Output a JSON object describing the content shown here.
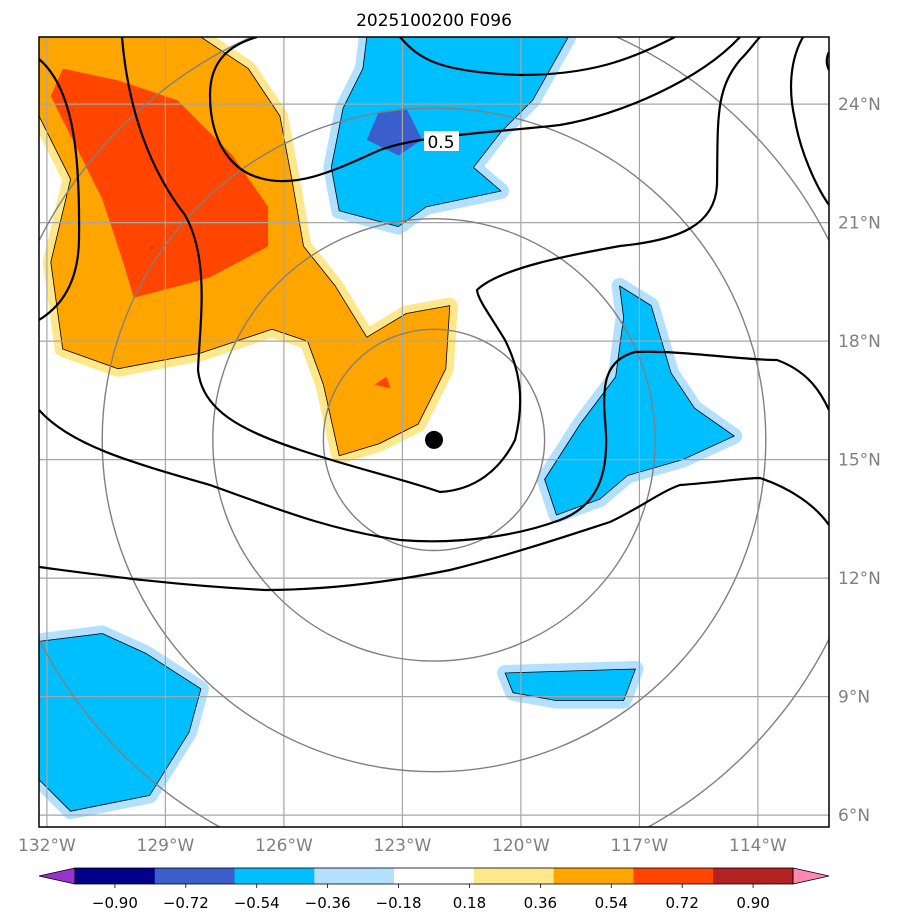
{
  "chart_data": {
    "type": "heatmap",
    "title": "2025100200 F096",
    "x_ticks": [
      "132°W",
      "129°W",
      "126°W",
      "123°W",
      "120°W",
      "117°W",
      "114°W"
    ],
    "x_tick_values": [
      -132,
      -129,
      -126,
      -123,
      -120,
      -117,
      -114
    ],
    "y_ticks": [
      "6°N",
      "9°N",
      "12°N",
      "15°N",
      "18°N",
      "21°N",
      "24°N"
    ],
    "y_tick_values": [
      6,
      9,
      12,
      15,
      18,
      21,
      24
    ],
    "xlim": [
      -132.2,
      -112.2
    ],
    "ylim": [
      5.7,
      25.7
    ],
    "grid": true,
    "storm_center": {
      "lon": -122.2,
      "lat": 15.5
    },
    "range_rings_deg": [
      2.8,
      5.6,
      8.4,
      11.2
    ],
    "contour_label": "0.5",
    "colorbar": {
      "orientation": "horizontal",
      "extend": "both",
      "tick_labels": [
        "−0.90",
        "−0.72",
        "−0.54",
        "−0.36",
        "−0.18",
        "0.18",
        "0.36",
        "0.54",
        "0.72",
        "0.90"
      ],
      "levels": [
        -0.9,
        -0.72,
        -0.54,
        -0.36,
        -0.18,
        0.18,
        0.36,
        0.54,
        0.72,
        0.9
      ],
      "colors": [
        "#9932cc",
        "#00008b",
        "#3a5fcd",
        "#00bfff",
        "#b3e0ff",
        "#ffffff",
        "#ffe78c",
        "#ffa500",
        "#ff4500",
        "#b22222",
        "#ff88b0"
      ]
    },
    "shaded_regions": [
      {
        "level": 0.54,
        "color": "#ffa500",
        "polygon": [
          [
            -132.2,
            25.7
          ],
          [
            -128.1,
            25.7
          ],
          [
            -126.9,
            24.9
          ],
          [
            -126.1,
            23.7
          ],
          [
            -125.8,
            22.1
          ],
          [
            -125.5,
            20.4
          ],
          [
            -124.7,
            19.4
          ],
          [
            -123.9,
            18.1
          ],
          [
            -122.9,
            18.7
          ],
          [
            -121.8,
            18.9
          ],
          [
            -121.9,
            17.3
          ],
          [
            -122.6,
            15.9
          ],
          [
            -123.6,
            15.4
          ],
          [
            -124.6,
            15.1
          ],
          [
            -125.0,
            16.9
          ],
          [
            -125.4,
            18.0
          ],
          [
            -126.3,
            18.3
          ],
          [
            -128.1,
            17.7
          ],
          [
            -130.2,
            17.3
          ],
          [
            -131.6,
            17.8
          ],
          [
            -131.9,
            20.0
          ],
          [
            -131.4,
            22.1
          ],
          [
            -132.2,
            23.7
          ]
        ]
      },
      {
        "level": 0.72,
        "color": "#ff4500",
        "polygon": [
          [
            -131.6,
            24.9
          ],
          [
            -130.2,
            24.6
          ],
          [
            -128.7,
            24.1
          ],
          [
            -127.3,
            22.7
          ],
          [
            -126.4,
            21.4
          ],
          [
            -126.4,
            20.4
          ],
          [
            -127.9,
            19.6
          ],
          [
            -129.8,
            19.1
          ],
          [
            -130.1,
            20.1
          ],
          [
            -130.6,
            21.6
          ],
          [
            -131.4,
            23.2
          ],
          [
            -131.9,
            24.2
          ]
        ]
      },
      {
        "level": 0.72,
        "color": "#ff4500",
        "polygon": [
          [
            -123.7,
            16.9
          ],
          [
            -123.4,
            17.1
          ],
          [
            -123.3,
            16.8
          ]
        ]
      },
      {
        "level": -0.36,
        "color": "#00bfff",
        "polygon": [
          [
            -123.9,
            25.7
          ],
          [
            -118.8,
            25.7
          ],
          [
            -119.7,
            24.1
          ],
          [
            -120.5,
            23.3
          ],
          [
            -121.2,
            22.4
          ],
          [
            -120.5,
            21.8
          ],
          [
            -122.4,
            21.4
          ],
          [
            -123.1,
            20.9
          ],
          [
            -124.6,
            21.3
          ],
          [
            -124.8,
            22.4
          ],
          [
            -124.5,
            23.9
          ],
          [
            -124.0,
            24.9
          ]
        ]
      },
      {
        "level": -0.54,
        "color": "#3a5fcd",
        "polygon": [
          [
            -123.6,
            23.8
          ],
          [
            -122.9,
            23.9
          ],
          [
            -122.5,
            23.1
          ],
          [
            -123.1,
            22.7
          ],
          [
            -123.9,
            23.1
          ]
        ]
      },
      {
        "level": -0.36,
        "color": "#00bfff",
        "polygon": [
          [
            -117.5,
            19.4
          ],
          [
            -116.7,
            18.9
          ],
          [
            -116.2,
            17.2
          ],
          [
            -115.6,
            16.3
          ],
          [
            -114.6,
            15.6
          ],
          [
            -115.9,
            15.0
          ],
          [
            -117.3,
            14.6
          ],
          [
            -118.0,
            14.0
          ],
          [
            -119.1,
            13.6
          ],
          [
            -119.4,
            14.5
          ],
          [
            -118.5,
            15.9
          ],
          [
            -117.6,
            17.1
          ],
          [
            -117.4,
            18.6
          ]
        ]
      },
      {
        "level": -0.36,
        "color": "#00bfff",
        "polygon": [
          [
            -132.2,
            10.4
          ],
          [
            -130.6,
            10.6
          ],
          [
            -129.5,
            10.1
          ],
          [
            -128.1,
            9.2
          ],
          [
            -128.4,
            8.1
          ],
          [
            -129.4,
            6.5
          ],
          [
            -131.4,
            6.1
          ],
          [
            -132.2,
            6.9
          ]
        ]
      },
      {
        "level": -0.36,
        "color": "#00bfff",
        "polygon": [
          [
            -120.4,
            9.6
          ],
          [
            -117.1,
            9.7
          ],
          [
            -117.4,
            8.9
          ],
          [
            -119.1,
            8.9
          ],
          [
            -120.2,
            9.1
          ]
        ]
      }
    ]
  }
}
